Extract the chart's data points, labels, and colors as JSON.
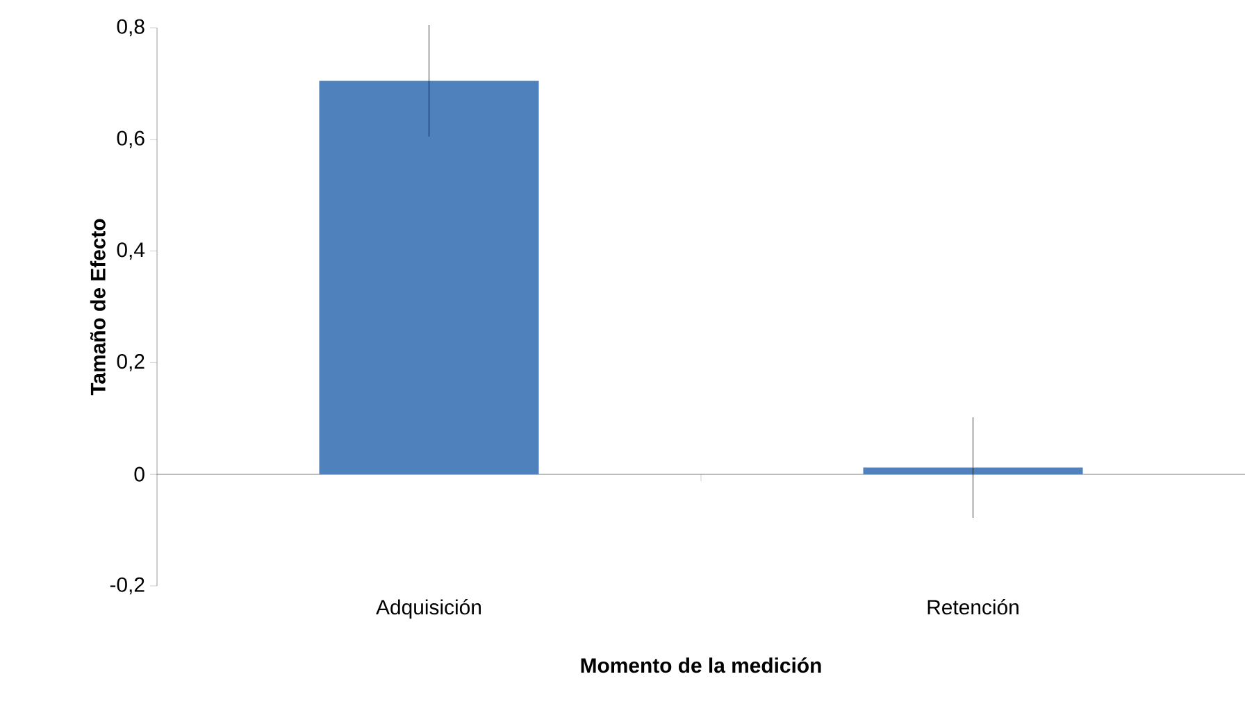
{
  "chart_data": {
    "type": "bar",
    "xlabel": "Momento de la medición",
    "ylabel": "Tamaño de Efecto",
    "categories": [
      "Adquisición",
      "Retención"
    ],
    "values": [
      0.705,
      0.012
    ],
    "errors": [
      0.1,
      0.09
    ],
    "color": "#4f81bd",
    "ylim": [
      -0.2,
      0.8
    ],
    "yticks": [
      {
        "value": -0.2,
        "label": "-0,2"
      },
      {
        "value": 0,
        "label": "0"
      },
      {
        "value": 0.2,
        "label": "0,2"
      },
      {
        "value": 0.4,
        "label": "0,4"
      },
      {
        "value": 0.6,
        "label": "0,6"
      },
      {
        "value": 0.8,
        "label": "0,8"
      }
    ]
  }
}
